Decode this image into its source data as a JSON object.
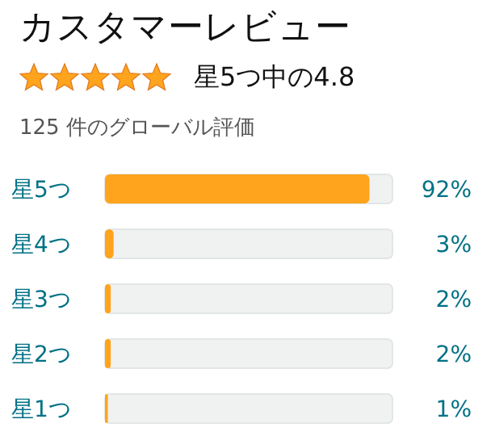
{
  "chart_data": {
    "type": "bar",
    "orientation": "horizontal",
    "title": "カスタマーレビュー",
    "subtitle": "星5つ中の4.8",
    "annotations": [
      "125 件のグローバル評価"
    ],
    "categories": [
      "星5つ",
      "星4つ",
      "星3つ",
      "星2つ",
      "星1つ"
    ],
    "values": [
      92,
      3,
      2,
      2,
      1
    ],
    "value_labels": [
      "92%",
      "3%",
      "2%",
      "2%",
      "1%"
    ],
    "color": "#ffa41c",
    "xlim": [
      0,
      100
    ],
    "grid": false
  }
}
